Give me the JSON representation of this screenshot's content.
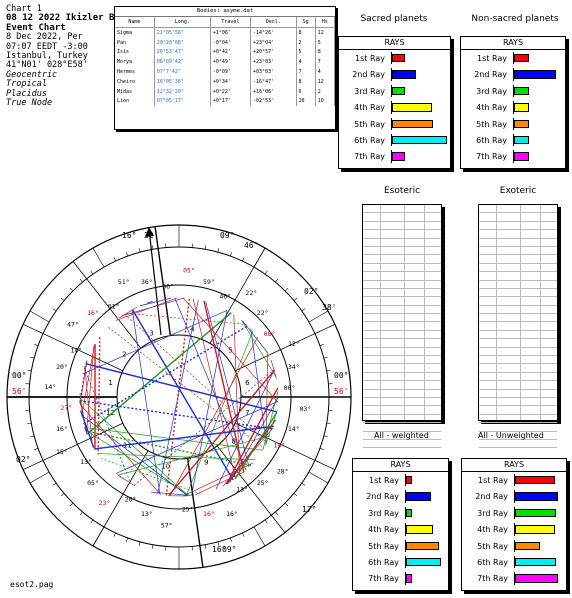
{
  "header": {
    "chart_no": "Chart 1",
    "title": "08 12 2022 Ikizler Bi",
    "subtitle": "Event Chart",
    "date": "8 Dec 2022, Per",
    "time": "07:07  EEDT -3:00",
    "place": "Istanbul, Turkey",
    "coords": "41°N01' 028°E58'",
    "modes": [
      "Geocentric",
      "Tropical",
      "Placidus",
      "True Node"
    ]
  },
  "bodies_table": {
    "caption": "Bodies: asyme.dat",
    "columns": [
      "Name",
      "Long.",
      "Travel",
      "Decl.",
      "Sg",
      "Hs"
    ],
    "rows": [
      {
        "name": "Sigma",
        "long": "21°05'56\"",
        "travel": "+1°06'",
        "decl": "-14°26'",
        "sg": "8",
        "hs": "12"
      },
      {
        "name": "Pan",
        "long": "20°20'08\"",
        "travel": "-0°04'",
        "decl": "+23°04'",
        "sg": "2",
        "hs": "5"
      },
      {
        "name": "Isis",
        "long": "26°53'47\"",
        "travel": "+0°42'",
        "decl": "+20°57'",
        "sg": "5",
        "hs": "8"
      },
      {
        "name": "Morya",
        "long": "06°09'42\"",
        "travel": "+0°49'",
        "decl": "+23°03'",
        "sg": "4",
        "hs": "7"
      },
      {
        "name": "Hermes",
        "long": "07°7'42\"",
        "travel": "-0°09'",
        "decl": "+03°03'",
        "sg": "7",
        "hs": "4"
      },
      {
        "name": "Cheiro",
        "long": "16°05'36\"",
        "travel": "+0°34'",
        "decl": "-16°47'",
        "sg": "8",
        "hs": "12"
      },
      {
        "name": "Midas",
        "long": "12°32'20\"",
        "travel": "+0°22'",
        "decl": "+16°06'",
        "sg": "6",
        "hs": "2"
      },
      {
        "name": "Lion",
        "long": "07°05'17\"",
        "travel": "+0°17'",
        "decl": "-02°53'",
        "sg": "10",
        "hs": "10"
      }
    ]
  },
  "sacred_planets": {
    "title": "Sacred planets",
    "rays_header": "RAYS",
    "rays": [
      {
        "label": "1st Ray",
        "value": 0.2,
        "color": "#ff0000"
      },
      {
        "label": "2nd Ray",
        "value": 0.4,
        "color": "#0000ff"
      },
      {
        "label": "3rd Ray",
        "value": 0.2,
        "color": "#00dd00"
      },
      {
        "label": "4th Ray",
        "value": 0.7,
        "color": "#ffff00"
      },
      {
        "label": "5th Ray",
        "value": 0.72,
        "color": "#ff8800"
      },
      {
        "label": "6th Ray",
        "value": 0.98,
        "color": "#00eeee"
      },
      {
        "label": "7th Ray",
        "value": 0.2,
        "color": "#ff00ff"
      }
    ]
  },
  "non_sacred_planets": {
    "title": "Non-sacred planets",
    "rays_header": "RAYS",
    "rays": [
      {
        "label": "1st Ray",
        "value": 0.28,
        "color": "#ff0000"
      },
      {
        "label": "2nd Ray",
        "value": 0.85,
        "color": "#0000ff"
      },
      {
        "label": "3rd Ray",
        "value": 0.28,
        "color": "#00dd00"
      },
      {
        "label": "4th Ray",
        "value": 0.28,
        "color": "#ffff00"
      },
      {
        "label": "5th Ray",
        "value": 0.28,
        "color": "#ff8800"
      },
      {
        "label": "6th Ray",
        "value": 0.28,
        "color": "#00eeee"
      },
      {
        "label": "7th Ray",
        "value": 0.28,
        "color": "#ff00ff"
      }
    ]
  },
  "esoteric": {
    "title": "Esoteric",
    "caption": "All - weighted"
  },
  "exoteric": {
    "title": "Exoteric",
    "caption": "All - Unweighted"
  },
  "weighted_rays": {
    "rays_header": "RAYS",
    "rays": [
      {
        "label": "1st Ray",
        "value": 0.1,
        "color": "#ff0000"
      },
      {
        "label": "2nd Ray",
        "value": 0.6,
        "color": "#0000ff"
      },
      {
        "label": "3rd Ray",
        "value": 0.1,
        "color": "#00dd00"
      },
      {
        "label": "4th Ray",
        "value": 0.65,
        "color": "#ffff00"
      },
      {
        "label": "5th Ray",
        "value": 0.82,
        "color": "#ff8800"
      },
      {
        "label": "6th Ray",
        "value": 0.88,
        "color": "#00eeee"
      },
      {
        "label": "7th Ray",
        "value": 0.1,
        "color": "#ff00ff"
      }
    ]
  },
  "unweighted_rays": {
    "rays_header": "RAYS",
    "rays": [
      {
        "label": "1st Ray",
        "value": 0.8,
        "color": "#ff0000"
      },
      {
        "label": "2nd Ray",
        "value": 0.88,
        "color": "#0000ff"
      },
      {
        "label": "3rd Ray",
        "value": 0.82,
        "color": "#00dd00"
      },
      {
        "label": "4th Ray",
        "value": 0.8,
        "color": "#ffff00"
      },
      {
        "label": "5th Ray",
        "value": 0.48,
        "color": "#ff8800"
      },
      {
        "label": "6th Ray",
        "value": 0.82,
        "color": "#00eeee"
      },
      {
        "label": "7th Ray",
        "value": 0.88,
        "color": "#ff00ff"
      }
    ]
  },
  "wheel": {
    "cusp_degrees": [
      {
        "text": "16°",
        "color": "#000"
      },
      {
        "text": "32'",
        "color": "#000"
      },
      {
        "text": "09°",
        "color": "#000"
      },
      {
        "text": "46'",
        "color": "#000"
      },
      {
        "text": "02°",
        "color": "#000"
      },
      {
        "text": "38'",
        "color": "#000"
      },
      {
        "text": "00°",
        "color": "#000"
      },
      {
        "text": "56'",
        "color": "#c00"
      },
      {
        "text": "17°",
        "color": "#000"
      },
      {
        "text": "09°",
        "color": "#000"
      },
      {
        "text": "16°",
        "color": "#000"
      },
      {
        "text": "02°",
        "color": "#000"
      },
      {
        "text": "00°",
        "color": "#000"
      },
      {
        "text": "56'",
        "color": "#c00"
      }
    ],
    "house_numbers": [
      "1",
      "2",
      "3",
      "4",
      "5",
      "6",
      "7",
      "8",
      "9",
      "10",
      "11",
      "12"
    ],
    "planet_degrees": [
      "03°",
      "14°",
      "19°",
      "28°",
      "25°",
      "13°",
      "16°",
      "16°",
      "25°",
      "57°",
      "13°",
      "20°",
      "23°",
      "05°",
      "13°",
      "15°",
      "16°",
      "27°",
      "14°",
      "20°",
      "14°",
      "47°",
      "16°",
      "01°",
      "51°",
      "36°",
      "36°",
      "05°",
      "59°",
      "46°",
      "22°",
      "22°",
      "08°",
      "12°",
      "34°",
      "00°"
    ]
  },
  "footer": "esot2.pag"
}
